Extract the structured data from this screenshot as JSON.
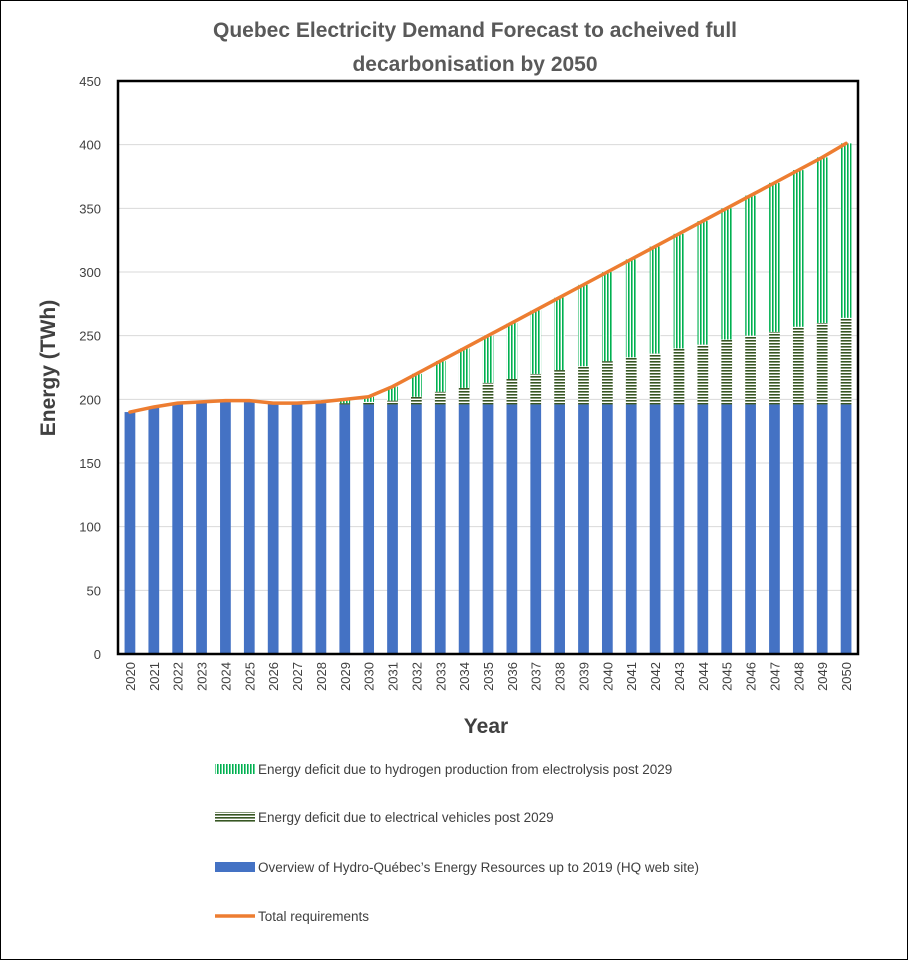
{
  "chart_data": {
    "type": "bar",
    "title_lines": [
      "Quebec Electricity Demand Forecast to acheived full",
      "decarbonisation by 2050"
    ],
    "xlabel": "Year",
    "ylabel": "Energy (TWh)",
    "ylim": [
      0,
      450
    ],
    "yticks": [
      0,
      50,
      100,
      150,
      200,
      250,
      300,
      350,
      400,
      450
    ],
    "grid": true,
    "legend_position": "bottom",
    "categories": [
      "2020",
      "2021",
      "2022",
      "2023",
      "2024",
      "2025",
      "2026",
      "2027",
      "2028",
      "2029",
      "2030",
      "2031",
      "2032",
      "2033",
      "2034",
      "2035",
      "2036",
      "2037",
      "2038",
      "2039",
      "2040",
      "2041",
      "2042",
      "2043",
      "2044",
      "2045",
      "2046",
      "2047",
      "2048",
      "2049",
      "2050"
    ],
    "series": [
      {
        "name": "Overview of Hydro-Québec’s Energy Resources up to 2019 (HQ web site)",
        "kind": "bar",
        "pattern": "solid",
        "color": "#4472C4",
        "values": [
          190,
          194,
          197,
          198,
          199,
          199,
          197,
          197,
          197,
          196,
          196,
          196,
          196,
          196,
          196,
          196,
          196,
          196,
          196,
          196,
          196,
          196,
          196,
          196,
          196,
          196,
          196,
          196,
          196,
          196,
          196
        ]
      },
      {
        "name": "Energy deficit due to electrical vehicles post 2029",
        "kind": "bar",
        "pattern": "horizontal-stripes",
        "color": "#375623",
        "values": [
          0,
          0,
          0,
          0,
          0,
          0,
          0,
          0,
          0,
          1,
          2,
          3,
          6,
          10,
          13,
          17,
          20,
          24,
          27,
          30,
          34,
          37,
          40,
          44,
          47,
          51,
          54,
          57,
          61,
          64,
          68
        ]
      },
      {
        "name": "Energy deficit due to hydrogen production from electrolysis post 2029",
        "kind": "bar",
        "pattern": "vertical-stripes",
        "color": "#00B050",
        "values": [
          0,
          0,
          0,
          0,
          0,
          0,
          0,
          0,
          0,
          3,
          4,
          11,
          18,
          24,
          31,
          37,
          44,
          50,
          57,
          64,
          70,
          77,
          84,
          90,
          97,
          103,
          110,
          117,
          123,
          130,
          137
        ]
      },
      {
        "name": "Total requirements",
        "kind": "line",
        "color": "#ED7D31",
        "values": [
          190,
          194,
          197,
          198,
          199,
          199,
          197,
          197,
          198,
          200,
          202,
          210,
          220,
          230,
          240,
          250,
          260,
          270,
          280,
          290,
          300,
          310,
          320,
          330,
          340,
          350,
          360,
          370,
          380,
          390,
          401
        ]
      }
    ],
    "legend_order": [
      2,
      1,
      0,
      3
    ]
  }
}
